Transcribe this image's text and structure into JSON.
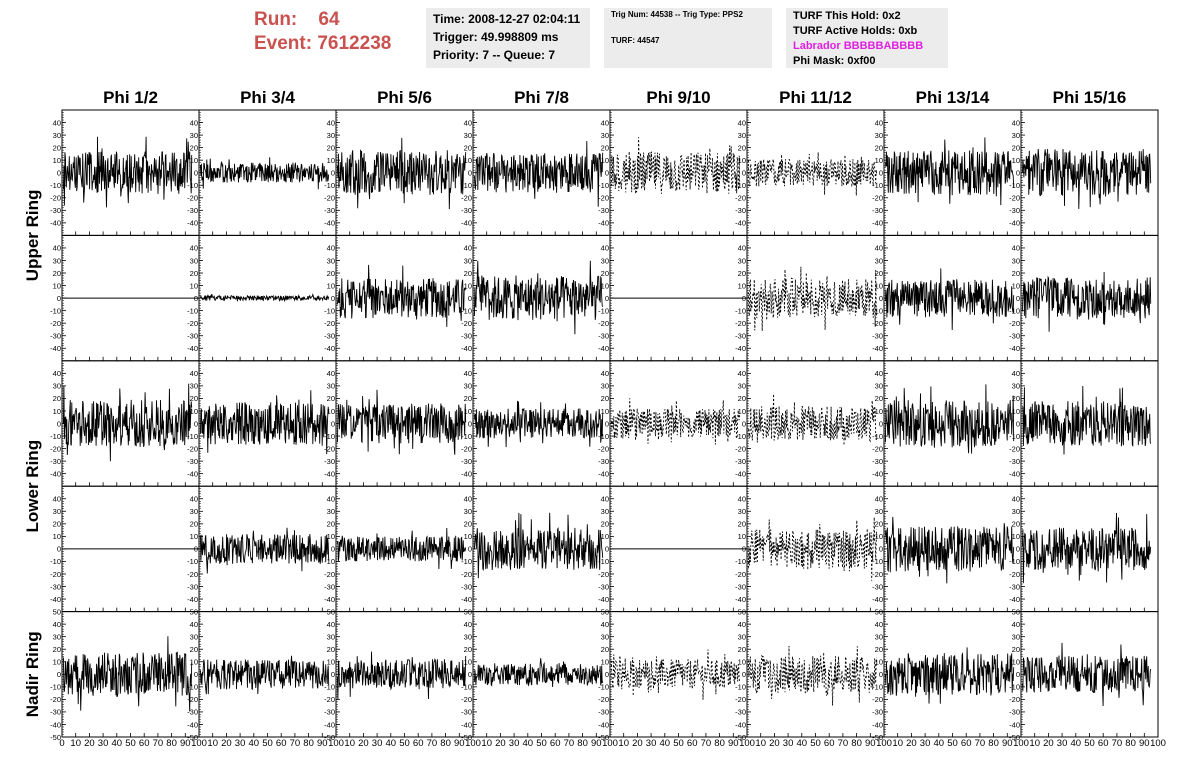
{
  "header": {
    "run_label": "Run:",
    "run_value": "64",
    "event_label": "Event:",
    "event_value": "7612238",
    "time_line": "Time: 2008-12-27 02:04:11",
    "trigger_line": "Trigger: 49.998809 ms",
    "priority_line": "Priority: 7 -- Queue: 7",
    "trig_line": "Trig Num: 44538 -- Trig Type: PPS2",
    "turf_line": "TURF: 44547",
    "turf_hold": "TURF This Hold: 0x2",
    "turf_active": "TURF Active Holds: 0xb",
    "labrador": "Labrador BBBBBABBBB",
    "phi_mask": "Phi Mask: 0xf00",
    "labrador_color": "#e020e0",
    "run_color": "#c9524e"
  },
  "chart_data": {
    "type": "line",
    "columns": [
      "Phi 1/2",
      "Phi 3/4",
      "Phi 5/6",
      "Phi 7/8",
      "Phi 9/10",
      "Phi 11/12",
      "Phi 13/14",
      "Phi 15/16"
    ],
    "rows": [
      "Upper Ring",
      "Upper Ring",
      "Lower Ring",
      "Lower Ring",
      "Nadir Ring"
    ],
    "row_labels": [
      {
        "text": "Upper Ring",
        "span": [
          0,
          1
        ]
      },
      {
        "text": "Lower Ring",
        "span": [
          2,
          3
        ]
      },
      {
        "text": "Nadir Ring",
        "span": [
          4,
          4
        ]
      }
    ],
    "xlim": [
      0,
      100
    ],
    "ylim": [
      -50,
      50
    ],
    "y_ticks": [
      "-40",
      "-30",
      "-20",
      "-10",
      "0",
      "10",
      "20",
      "30",
      "40"
    ],
    "y_ticks_full": [
      "-50",
      "-40",
      "-30",
      "-20",
      "-10",
      "0",
      "10",
      "20",
      "30",
      "40",
      "50"
    ],
    "x_tick_labels_first": [
      "0",
      "10",
      "20",
      "30",
      "40",
      "50",
      "60",
      "70",
      "80",
      "90",
      "100"
    ],
    "x_tick_labels_rest": [
      "10",
      "20",
      "30",
      "40",
      "50",
      "60",
      "70",
      "80",
      "90",
      "100"
    ],
    "panels": [
      [
        {
          "amp": 17,
          "dash": false,
          "flat": false,
          "seed": 11
        },
        {
          "amp": 8,
          "dash": false,
          "flat": false,
          "seed": 12
        },
        {
          "amp": 18,
          "dash": false,
          "flat": false,
          "seed": 13
        },
        {
          "amp": 16,
          "dash": false,
          "flat": false,
          "seed": 14
        },
        {
          "amp": 17,
          "dash": true,
          "flat": false,
          "seed": 15
        },
        {
          "amp": 11,
          "dash": true,
          "flat": false,
          "seed": 16
        },
        {
          "amp": 18,
          "dash": false,
          "flat": false,
          "seed": 17
        },
        {
          "amp": 19,
          "dash": false,
          "flat": false,
          "seed": 18
        }
      ],
      [
        {
          "amp": 0,
          "dash": false,
          "flat": true,
          "seed": 21
        },
        {
          "amp": 2,
          "dash": false,
          "flat": false,
          "seed": 22
        },
        {
          "amp": 16,
          "dash": false,
          "flat": false,
          "seed": 23
        },
        {
          "amp": 18,
          "dash": false,
          "flat": false,
          "seed": 24
        },
        {
          "amp": 0,
          "dash": false,
          "flat": true,
          "seed": 25
        },
        {
          "amp": 16,
          "dash": true,
          "flat": false,
          "seed": 26
        },
        {
          "amp": 15,
          "dash": false,
          "flat": false,
          "seed": 27
        },
        {
          "amp": 17,
          "dash": false,
          "flat": false,
          "seed": 28
        }
      ],
      [
        {
          "amp": 19,
          "dash": false,
          "flat": false,
          "seed": 31
        },
        {
          "amp": 17,
          "dash": false,
          "flat": false,
          "seed": 32
        },
        {
          "amp": 16,
          "dash": false,
          "flat": false,
          "seed": 33
        },
        {
          "amp": 12,
          "dash": false,
          "flat": false,
          "seed": 34
        },
        {
          "amp": 12,
          "dash": true,
          "flat": false,
          "seed": 35
        },
        {
          "amp": 14,
          "dash": true,
          "flat": false,
          "seed": 36
        },
        {
          "amp": 19,
          "dash": false,
          "flat": false,
          "seed": 37
        },
        {
          "amp": 18,
          "dash": false,
          "flat": false,
          "seed": 38
        }
      ],
      [
        {
          "amp": 0,
          "dash": false,
          "flat": true,
          "seed": 41
        },
        {
          "amp": 12,
          "dash": false,
          "flat": false,
          "seed": 42
        },
        {
          "amp": 10,
          "dash": false,
          "flat": false,
          "seed": 43
        },
        {
          "amp": 17,
          "dash": false,
          "flat": false,
          "seed": 44
        },
        {
          "amp": 0,
          "dash": false,
          "flat": true,
          "seed": 45
        },
        {
          "amp": 16,
          "dash": true,
          "flat": false,
          "seed": 46
        },
        {
          "amp": 18,
          "dash": false,
          "flat": false,
          "seed": 47
        },
        {
          "amp": 17,
          "dash": false,
          "flat": false,
          "seed": 48
        }
      ],
      [
        {
          "amp": 18,
          "dash": false,
          "flat": false,
          "seed": 51
        },
        {
          "amp": 12,
          "dash": false,
          "flat": false,
          "seed": 52
        },
        {
          "amp": 12,
          "dash": false,
          "flat": false,
          "seed": 53
        },
        {
          "amp": 9,
          "dash": false,
          "flat": false,
          "seed": 54
        },
        {
          "amp": 12,
          "dash": true,
          "flat": false,
          "seed": 55
        },
        {
          "amp": 15,
          "dash": true,
          "flat": false,
          "seed": 56
        },
        {
          "amp": 17,
          "dash": false,
          "flat": false,
          "seed": 57
        },
        {
          "amp": 15,
          "dash": false,
          "flat": false,
          "seed": 58
        }
      ]
    ]
  }
}
